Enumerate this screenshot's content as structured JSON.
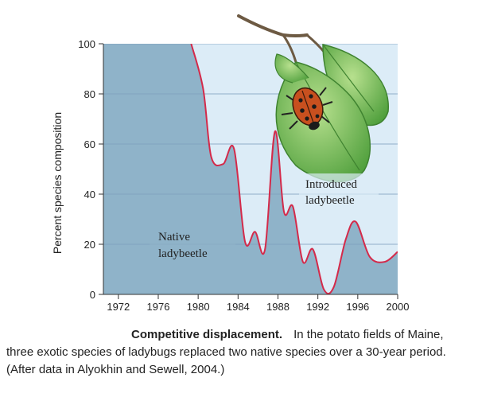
{
  "chart_data": {
    "type": "area",
    "x_ticks": [
      1972,
      1976,
      1980,
      1984,
      1988,
      1992,
      1996,
      2000
    ],
    "y_ticks": [
      0,
      20,
      40,
      60,
      80,
      100
    ],
    "xlim": [
      1970.5,
      2000
    ],
    "ylim": [
      0,
      100
    ],
    "xlabel": "",
    "ylabel": "Percent species composition",
    "grid": "horizontal",
    "series": [
      {
        "x": [
          1979.3,
          1980.5,
          1981.3,
          1982.5,
          1983.6,
          1984.7,
          1985.7,
          1986.7,
          1987.7,
          1988.6,
          1989.5,
          1990.5,
          1991.5,
          1992.6,
          1993.6,
          1994.8,
          1995.8,
          1997.2,
          1998.7,
          2000
        ],
        "y": [
          100,
          82,
          55,
          52,
          58,
          21,
          25,
          18,
          65,
          33,
          35,
          13,
          18,
          2,
          3,
          22,
          29,
          15,
          13,
          17
        ]
      }
    ],
    "annotations": [
      {
        "text_lines": [
          "Native",
          "ladybeetle"
        ]
      },
      {
        "text_lines": [
          "Introduced",
          "ladybeetle"
        ]
      }
    ],
    "colors": {
      "native_fill": "#8fb3c9",
      "introduced_fill": "#dcecf7",
      "line": "#d42a4a",
      "gridline": "#7e9fbc"
    }
  },
  "illustration": {
    "leaf_color": "#6dbb55",
    "beetle_color": "#c8501f",
    "icon": "ladybug-on-leaf-icon"
  },
  "caption": {
    "title": "Competitive displacement.",
    "text": "In the potato fields of Maine, three exotic species of ladybugs replaced two native species over a 30-year period. (After data in Alyokhin and Sewell, 2004.)"
  }
}
